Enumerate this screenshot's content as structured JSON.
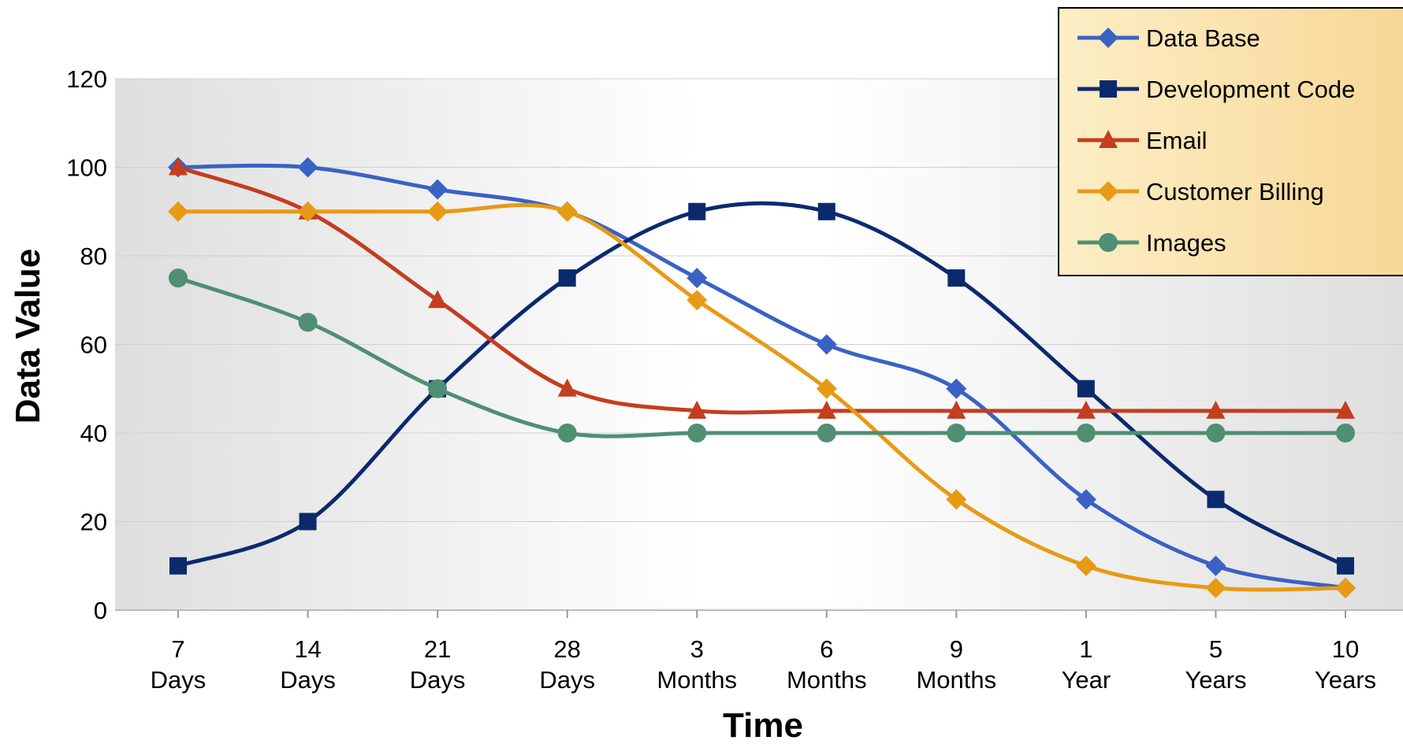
{
  "chart_data": {
    "type": "line",
    "title": "",
    "xlabel": "Time",
    "ylabel": "Data Value",
    "ylim": [
      0,
      120
    ],
    "yticks": [
      0,
      20,
      40,
      60,
      80,
      100,
      120
    ],
    "grid": true,
    "legend_position": "top-right",
    "categories": [
      [
        "7",
        "Days"
      ],
      [
        "14",
        "Days"
      ],
      [
        "21",
        "Days"
      ],
      [
        "28",
        "Days"
      ],
      [
        "3",
        "Months"
      ],
      [
        "6",
        "Months"
      ],
      [
        "9",
        "Months"
      ],
      [
        "1",
        "Year"
      ],
      [
        "5",
        "Years"
      ],
      [
        "10",
        "Years"
      ]
    ],
    "series": [
      {
        "name": "Data Base",
        "color": "#3a62c4",
        "marker": "diamond",
        "values": [
          100,
          100,
          95,
          90,
          75,
          60,
          50,
          25,
          10,
          5
        ]
      },
      {
        "name": "Development Code",
        "color": "#0b2a6e",
        "marker": "square",
        "values": [
          10,
          20,
          50,
          75,
          90,
          90,
          75,
          50,
          25,
          10
        ]
      },
      {
        "name": "Email",
        "color": "#c43d1f",
        "marker": "triangle",
        "values": [
          100,
          90,
          70,
          50,
          45,
          45,
          45,
          45,
          45,
          45
        ]
      },
      {
        "name": "Customer Billing",
        "color": "#e89a14",
        "marker": "diamond",
        "values": [
          90,
          90,
          90,
          90,
          70,
          50,
          25,
          10,
          5,
          5
        ]
      },
      {
        "name": "Images",
        "color": "#4f8f73",
        "marker": "circle",
        "values": [
          75,
          65,
          50,
          40,
          40,
          40,
          40,
          40,
          40,
          40
        ]
      }
    ]
  }
}
